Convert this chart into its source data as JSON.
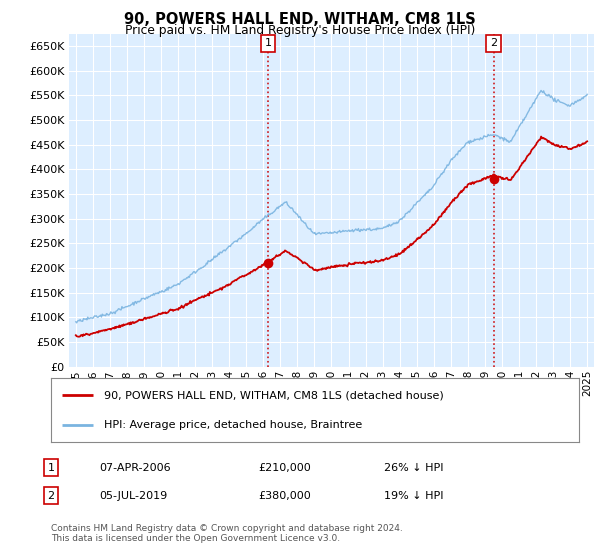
{
  "title": "90, POWERS HALL END, WITHAM, CM8 1LS",
  "subtitle": "Price paid vs. HM Land Registry's House Price Index (HPI)",
  "ytick_vals": [
    0,
    50000,
    100000,
    150000,
    200000,
    250000,
    300000,
    350000,
    400000,
    450000,
    500000,
    550000,
    600000,
    650000
  ],
  "ylim": [
    0,
    675000
  ],
  "xlim": [
    1994.6,
    2025.4
  ],
  "xtick_years": [
    1995,
    1996,
    1997,
    1998,
    1999,
    2000,
    2001,
    2002,
    2003,
    2004,
    2005,
    2006,
    2007,
    2008,
    2009,
    2010,
    2011,
    2012,
    2013,
    2014,
    2015,
    2016,
    2017,
    2018,
    2019,
    2020,
    2021,
    2022,
    2023,
    2024,
    2025
  ],
  "bg_color": "#ddeeff",
  "grid_color": "#ffffff",
  "hpi_color": "#7ab4e0",
  "price_color": "#cc0000",
  "ann1_x": 2006.27,
  "ann1_y": 210000,
  "ann2_x": 2019.51,
  "ann2_y": 380000,
  "legend_house_label": "90, POWERS HALL END, WITHAM, CM8 1LS (detached house)",
  "legend_hpi_label": "HPI: Average price, detached house, Braintree",
  "table_row1_num": "1",
  "table_row1_date": "07-APR-2006",
  "table_row1_price": "£210,000",
  "table_row1_hpi": "26% ↓ HPI",
  "table_row2_num": "2",
  "table_row2_date": "05-JUL-2019",
  "table_row2_price": "£380,000",
  "table_row2_hpi": "19% ↓ HPI",
  "footnote": "Contains HM Land Registry data © Crown copyright and database right 2024.\nThis data is licensed under the Open Government Licence v3.0."
}
